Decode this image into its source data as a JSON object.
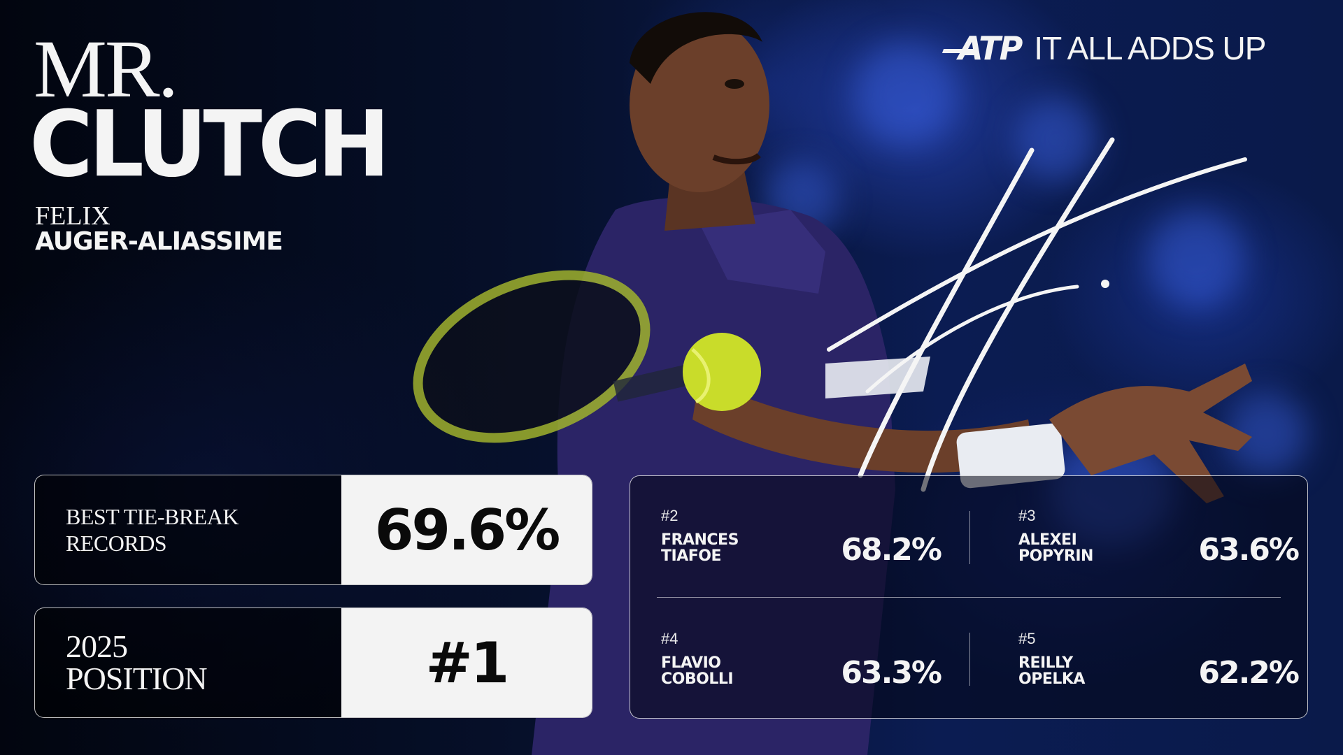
{
  "title": {
    "line1": "MR.",
    "line2": "CLUTCH"
  },
  "player": {
    "first_name": "FELIX",
    "last_name": "AUGER-ALIASSIME"
  },
  "brand": {
    "logo": "ATP",
    "tagline": "IT ALL ADDS UP"
  },
  "stat_card": {
    "label_line1": "BEST TIE-BREAK",
    "label_line2": "RECORDS",
    "value": "69.6%"
  },
  "position_card": {
    "label_line1": "2025",
    "label_line2": "POSITION",
    "value": "#1"
  },
  "others": [
    {
      "rank": "#2",
      "first": "FRANCES",
      "last": "TIAFOE",
      "pct": "68.2%"
    },
    {
      "rank": "#3",
      "first": "ALEXEI",
      "last": "POPYRIN",
      "pct": "63.6%"
    },
    {
      "rank": "#4",
      "first": "FLAVIO",
      "last": "COBOLLI",
      "pct": "63.3%"
    },
    {
      "rank": "#5",
      "first": "REILLY",
      "last": "OPELKA",
      "pct": "62.2%"
    }
  ],
  "colors": {
    "background": "#050b1e",
    "crowd_blue": "#2a48be",
    "shirt_purple": "#2b2466",
    "card_fill": "#f3f3f3",
    "ball_yellow": "#c9dc2a"
  }
}
